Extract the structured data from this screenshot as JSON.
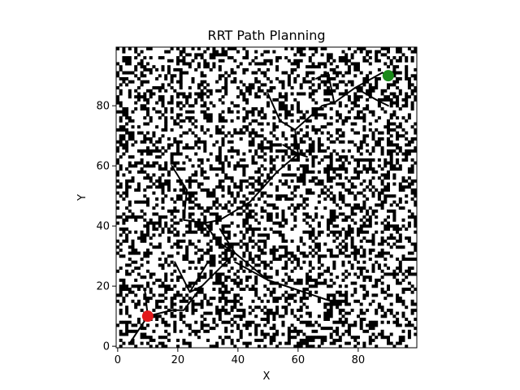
{
  "chart_data": {
    "type": "scatter",
    "title": "RRT Path Planning",
    "xlabel": "X",
    "ylabel": "Y",
    "xlim": [
      -0.5,
      99.5
    ],
    "ylim": [
      -0.5,
      99.5
    ],
    "x_ticks": [
      0,
      20,
      40,
      60,
      80
    ],
    "x_tick_labels": [
      "0",
      "20",
      "40",
      "60",
      "80"
    ],
    "y_ticks": [
      0,
      20,
      40,
      60,
      80
    ],
    "y_tick_labels": [
      "0",
      "20",
      "40",
      "60",
      "80"
    ],
    "grid": false,
    "background": "occupancy grid 100x100 (black = obstacle, white = free), random pattern approx. 35% occupied",
    "occupancy_grid": {
      "rows": 100,
      "cols": 100,
      "occupied_fraction": 0.35
    },
    "colors": {
      "obstacle": "#000000",
      "free": "#ffffff",
      "tree": "#000000",
      "start": "#e31a1c",
      "goal": "#1a8a1a"
    },
    "start": {
      "x": 10,
      "y": 10
    },
    "goal": {
      "x": 90,
      "y": 90
    },
    "tree_edges": [
      [
        [
          4,
          1
        ],
        [
          10,
          10
        ]
      ],
      [
        [
          10,
          10
        ],
        [
          9,
          19
        ]
      ],
      [
        [
          10,
          10
        ],
        [
          18,
          12
        ]
      ],
      [
        [
          18,
          12
        ],
        [
          22,
          12
        ]
      ],
      [
        [
          22,
          12
        ],
        [
          28,
          20
        ]
      ],
      [
        [
          28,
          20
        ],
        [
          24,
          18
        ]
      ],
      [
        [
          24,
          18
        ],
        [
          19,
          28
        ]
      ],
      [
        [
          24,
          18
        ],
        [
          30,
          28
        ]
      ],
      [
        [
          28,
          20
        ],
        [
          39,
          31
        ]
      ],
      [
        [
          39,
          31
        ],
        [
          33,
          35
        ]
      ],
      [
        [
          33,
          35
        ],
        [
          29,
          41
        ]
      ],
      [
        [
          29,
          41
        ],
        [
          22,
          42
        ]
      ],
      [
        [
          22,
          42
        ],
        [
          23,
          52
        ]
      ],
      [
        [
          23,
          52
        ],
        [
          18,
          60
        ]
      ],
      [
        [
          29,
          41
        ],
        [
          34,
          42
        ]
      ],
      [
        [
          34,
          42
        ],
        [
          44,
          48
        ]
      ],
      [
        [
          44,
          48
        ],
        [
          53,
          58
        ]
      ],
      [
        [
          53,
          58
        ],
        [
          60,
          64
        ]
      ],
      [
        [
          60,
          64
        ],
        [
          59,
          72
        ]
      ],
      [
        [
          59,
          72
        ],
        [
          54,
          75
        ]
      ],
      [
        [
          54,
          75
        ],
        [
          50,
          84
        ]
      ],
      [
        [
          60,
          64
        ],
        [
          55,
          67
        ]
      ],
      [
        [
          59,
          72
        ],
        [
          68,
          80
        ]
      ],
      [
        [
          68,
          80
        ],
        [
          72,
          81
        ]
      ],
      [
        [
          72,
          81
        ],
        [
          70,
          91
        ]
      ],
      [
        [
          70,
          91
        ],
        [
          66,
          89
        ]
      ],
      [
        [
          72,
          81
        ],
        [
          79,
          86
        ]
      ],
      [
        [
          79,
          86
        ],
        [
          88,
          91
        ]
      ],
      [
        [
          88,
          91
        ],
        [
          90,
          90
        ]
      ],
      [
        [
          79,
          86
        ],
        [
          86,
          82
        ]
      ],
      [
        [
          86,
          82
        ],
        [
          90,
          80
        ]
      ],
      [
        [
          39,
          31
        ],
        [
          50,
          22
        ]
      ],
      [
        [
          50,
          22
        ],
        [
          62,
          18
        ]
      ],
      [
        [
          62,
          18
        ],
        [
          71,
          15
        ]
      ],
      [
        [
          50,
          22
        ],
        [
          39,
          28
        ]
      ],
      [
        [
          39,
          31
        ],
        [
          34,
          39
        ]
      ],
      [
        [
          60,
          64
        ],
        [
          63,
          63
        ]
      ]
    ]
  }
}
